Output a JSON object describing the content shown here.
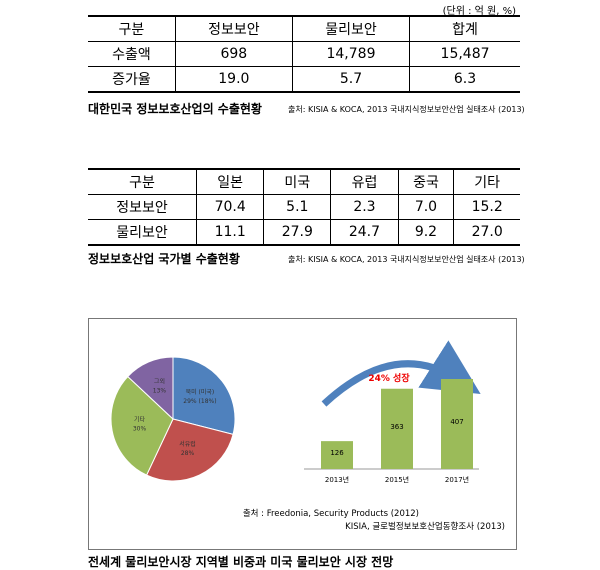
{
  "unit_note": "(단위 : 억 원, %)",
  "table1": {
    "header": [
      "구분",
      "정보보안",
      "물리보안",
      "합계"
    ],
    "rows": [
      [
        "수출액",
        "698",
        "14,789",
        "15,487"
      ],
      [
        "증가율",
        "19.0",
        "5.7",
        "6.3"
      ]
    ],
    "caption": "대한민국 정보보호산업의 수출현황",
    "source": "출처: KISIA & KOCA, 2013 국내지식정보보안산업 실태조사 (2013)"
  },
  "table2": {
    "header": [
      "구분",
      "일본",
      "미국",
      "유럽",
      "중국",
      "기타"
    ],
    "rows": [
      [
        "정보보안",
        "70.4",
        "5.1",
        "2.3",
        "7.0",
        "15.2"
      ],
      [
        "물리보안",
        "11.1",
        "27.9",
        "24.7",
        "9.2",
        "27.0"
      ]
    ],
    "caption": "정보보호산업 국가별 수출현황",
    "source": "출처: KISIA & KOCA, 2013 국내지식정보보안산업 실태조사 (2013)"
  },
  "figure": {
    "pie": {
      "type": "pie",
      "slices": [
        {
          "label": "북미 (미국)",
          "value": 29,
          "value_label": "29% (18%)",
          "color": "#4f81bd"
        },
        {
          "label": "서유럽",
          "value": 28,
          "value_label": "28%",
          "color": "#c0504d"
        },
        {
          "label": "기타",
          "value": 30,
          "value_label": "30%",
          "color": "#9bbb59"
        },
        {
          "label": "그외",
          "value": 13,
          "value_label": "13%",
          "color": "#8064a2"
        }
      ]
    },
    "bar": {
      "type": "bar",
      "categories": [
        "2013년",
        "2015년",
        "2017년"
      ],
      "values": [
        126,
        363,
        407
      ],
      "color": "#9bbb59",
      "annotation": "24% 성장"
    },
    "source_lines": [
      "출처 : Freedonia, Security Products (2012)",
      "KISIA, 글로벌정보보호산업동향조사 (2013)"
    ],
    "caption": "전세계 물리보안시장 지역별 비중과 미국 물리보안 시장 전망"
  }
}
